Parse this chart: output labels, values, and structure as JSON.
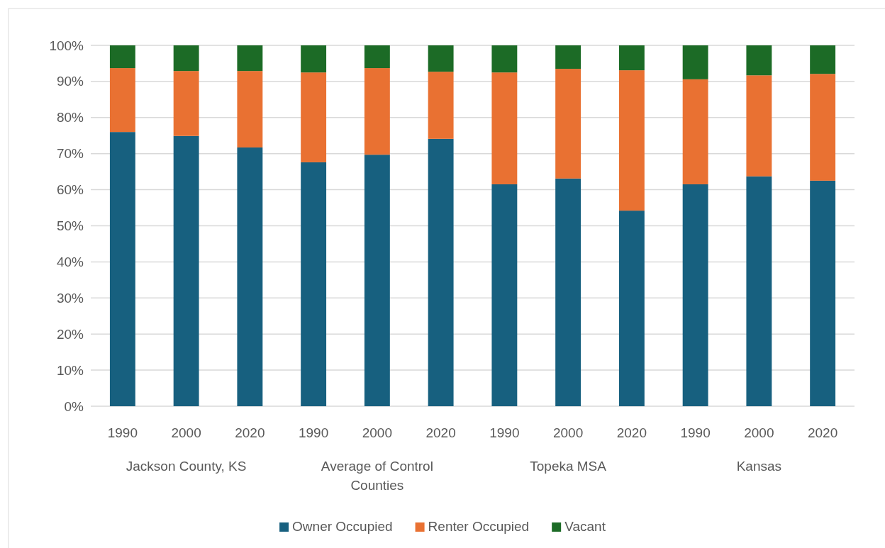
{
  "chart_data": {
    "type": "bar",
    "stacked": true,
    "categories": [
      "1990",
      "2000",
      "2020",
      "1990",
      "2000",
      "2020",
      "1990",
      "2000",
      "2020",
      "1990",
      "2000",
      "2020"
    ],
    "annotations": [
      "Jackson County, KS",
      "Average of Control Counties",
      "Topeka MSA",
      "Kansas"
    ],
    "series": [
      {
        "name": "Owner Occupied",
        "color": "#17607f",
        "values": [
          76.0,
          74.9,
          71.7,
          67.6,
          69.7,
          74.1,
          61.5,
          63.1,
          54.2,
          61.5,
          63.7,
          62.5
        ]
      },
      {
        "name": "Renter Occupied",
        "color": "#e97132",
        "values": [
          17.7,
          18.0,
          21.2,
          24.9,
          24.0,
          18.6,
          31.0,
          30.4,
          38.9,
          29.1,
          28.0,
          29.6
        ]
      },
      {
        "name": "Vacant",
        "color": "#1c6b26",
        "values": [
          6.3,
          7.1,
          7.1,
          7.5,
          6.3,
          7.3,
          7.5,
          6.5,
          6.9,
          9.4,
          8.3,
          7.9
        ]
      }
    ],
    "ylim": [
      0,
      100
    ],
    "yticks": [
      {
        "value": 0,
        "label": "0%"
      },
      {
        "value": 10,
        "label": "10%"
      },
      {
        "value": 20,
        "label": "20%"
      },
      {
        "value": 30,
        "label": "30%"
      },
      {
        "value": 40,
        "label": "40%"
      },
      {
        "value": 50,
        "label": "50%"
      },
      {
        "value": 60,
        "label": "60%"
      },
      {
        "value": 70,
        "label": "70%"
      },
      {
        "value": 80,
        "label": "80%"
      },
      {
        "value": 90,
        "label": "90%"
      },
      {
        "value": 100,
        "label": "100%"
      }
    ],
    "grid": "y",
    "legend": "bottom"
  }
}
